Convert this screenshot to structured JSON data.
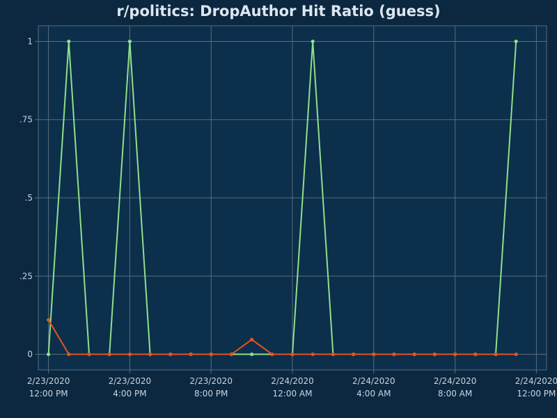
{
  "chart_data": {
    "type": "line",
    "title": "r/politics: DropAuthor Hit Ratio (guess)",
    "xlabel": "",
    "ylabel": "",
    "x_tick_labels": [
      {
        "date": "2/23/2020",
        "time": "12:00 PM"
      },
      {
        "date": "2/23/2020",
        "time": "4:00 PM"
      },
      {
        "date": "2/23/2020",
        "time": "8:00 PM"
      },
      {
        "date": "2/24/2020",
        "time": "12:00 AM"
      },
      {
        "date": "2/24/2020",
        "time": "4:00 AM"
      },
      {
        "date": "2/24/2020",
        "time": "8:00 AM"
      },
      {
        "date": "2/24/2020",
        "time": "12:00 PM"
      }
    ],
    "x_ticks": [
      "2020-02-23 12:00",
      "2020-02-23 16:00",
      "2020-02-23 20:00",
      "2020-02-24 00:00",
      "2020-02-24 04:00",
      "2020-02-24 08:00",
      "2020-02-24 12:00"
    ],
    "y_ticks": [
      {
        "value": 0,
        "label": "0"
      },
      {
        "value": 0.25,
        "label": ".25"
      },
      {
        "value": 0.5,
        "label": ".5"
      },
      {
        "value": 0.75,
        "label": ".75"
      },
      {
        "value": 1,
        "label": "1"
      }
    ],
    "xlim": [
      "2020-02-23 11:30",
      "2020-02-24 12:30"
    ],
    "ylim": [
      -0.05,
      1.05
    ],
    "grid": true,
    "legend": "none",
    "x": [
      "2020-02-23 12:00",
      "2020-02-23 13:00",
      "2020-02-23 14:00",
      "2020-02-23 15:00",
      "2020-02-23 16:00",
      "2020-02-23 17:00",
      "2020-02-23 18:00",
      "2020-02-23 19:00",
      "2020-02-23 20:00",
      "2020-02-23 21:00",
      "2020-02-23 22:00",
      "2020-02-23 23:00",
      "2020-02-24 00:00",
      "2020-02-24 01:00",
      "2020-02-24 02:00",
      "2020-02-24 03:00",
      "2020-02-24 04:00",
      "2020-02-24 05:00",
      "2020-02-24 06:00",
      "2020-02-24 07:00",
      "2020-02-24 08:00",
      "2020-02-24 09:00",
      "2020-02-24 10:00",
      "2020-02-24 11:00"
    ],
    "series": [
      {
        "color": "#8fe08a",
        "values": [
          0,
          1,
          0,
          0,
          1,
          0,
          0,
          0,
          0,
          0,
          0,
          0,
          0,
          1,
          0,
          0,
          0,
          0,
          0,
          0,
          0,
          0,
          0,
          1
        ]
      },
      {
        "color": "#e8531c",
        "values": [
          0.11,
          0,
          0,
          0,
          0,
          0,
          0,
          0,
          0,
          0,
          0.047,
          0,
          0,
          0,
          0,
          0,
          0,
          0,
          0,
          0,
          0,
          0,
          0,
          0
        ]
      }
    ],
    "colors": {
      "background": "#0b2840",
      "plot_background": "#0c2f4b",
      "grid": "#5a6d7d",
      "text": "#c9d4de",
      "title": "#dde6ee"
    }
  }
}
